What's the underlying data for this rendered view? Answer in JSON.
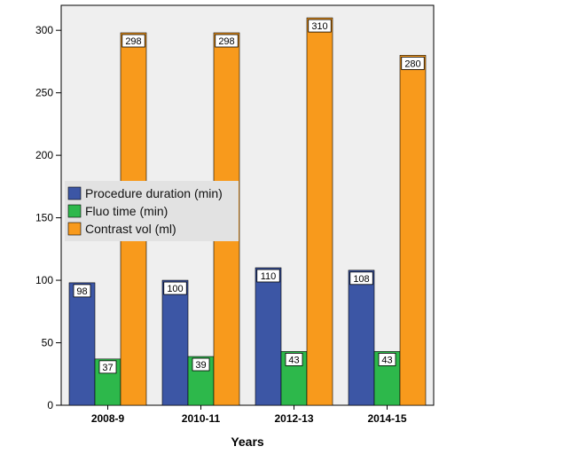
{
  "chart_data": {
    "type": "bar",
    "xlabel": "Years",
    "ylabel": "",
    "categories": [
      "2008-9",
      "2010-11",
      "2012-13",
      "2014-15"
    ],
    "ylim": [
      0,
      320
    ],
    "yticks": [
      0,
      50,
      100,
      150,
      200,
      250,
      300
    ],
    "series": [
      {
        "name": "Procedure duration (min)",
        "values": [
          98,
          100,
          110,
          108
        ],
        "color": "#3c56a5"
      },
      {
        "name": "Fluo time (min)",
        "values": [
          37,
          39,
          43,
          43
        ],
        "color": "#2db84b"
      },
      {
        "name": "Contrast vol (ml)",
        "values": [
          298,
          298,
          310,
          280
        ],
        "color": "#f89a1c"
      }
    ],
    "legend_position": "middle-left",
    "plot_background": "#efefef",
    "grid": false
  }
}
